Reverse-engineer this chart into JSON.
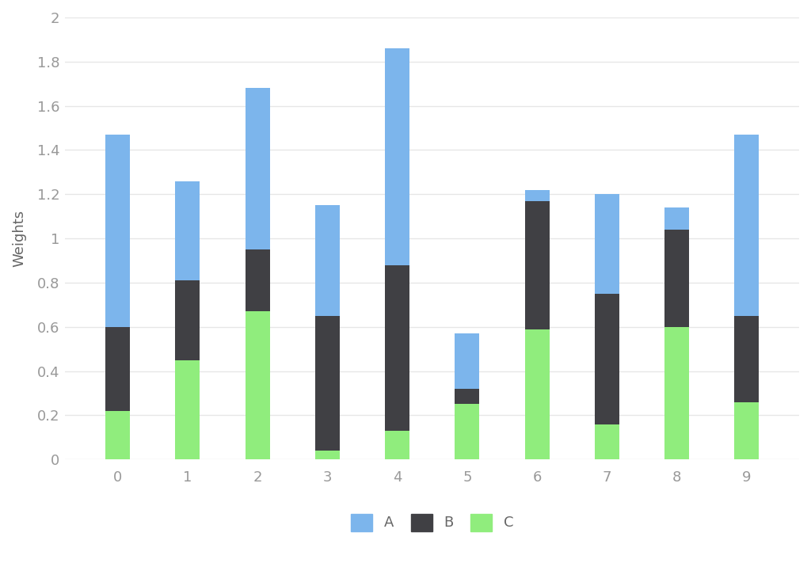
{
  "categories": [
    0,
    1,
    2,
    3,
    4,
    5,
    6,
    7,
    8,
    9
  ],
  "series": {
    "A": [
      0.87,
      0.45,
      0.73,
      0.5,
      0.98,
      0.25,
      0.05,
      0.45,
      0.1,
      0.82
    ],
    "B": [
      0.38,
      0.36,
      0.28,
      0.61,
      0.75,
      0.07,
      0.58,
      0.59,
      0.44,
      0.39
    ],
    "C": [
      0.22,
      0.45,
      0.67,
      0.04,
      0.13,
      0.25,
      0.59,
      0.16,
      0.6,
      0.26
    ]
  },
  "colors": {
    "A": "#7cb5ec",
    "B": "#404044",
    "C": "#90ed7d"
  },
  "ylabel": "Weights",
  "ylim": [
    0,
    2
  ],
  "yticks": [
    0,
    0.2,
    0.4,
    0.6,
    0.8,
    1.0,
    1.2,
    1.4,
    1.6,
    1.8,
    2.0
  ],
  "background_color": "#ffffff",
  "grid_color": "#e6e6e6",
  "bar_width": 0.35,
  "legend_labels": [
    "A",
    "B",
    "C"
  ],
  "tick_color": "#999999",
  "label_color": "#666666"
}
